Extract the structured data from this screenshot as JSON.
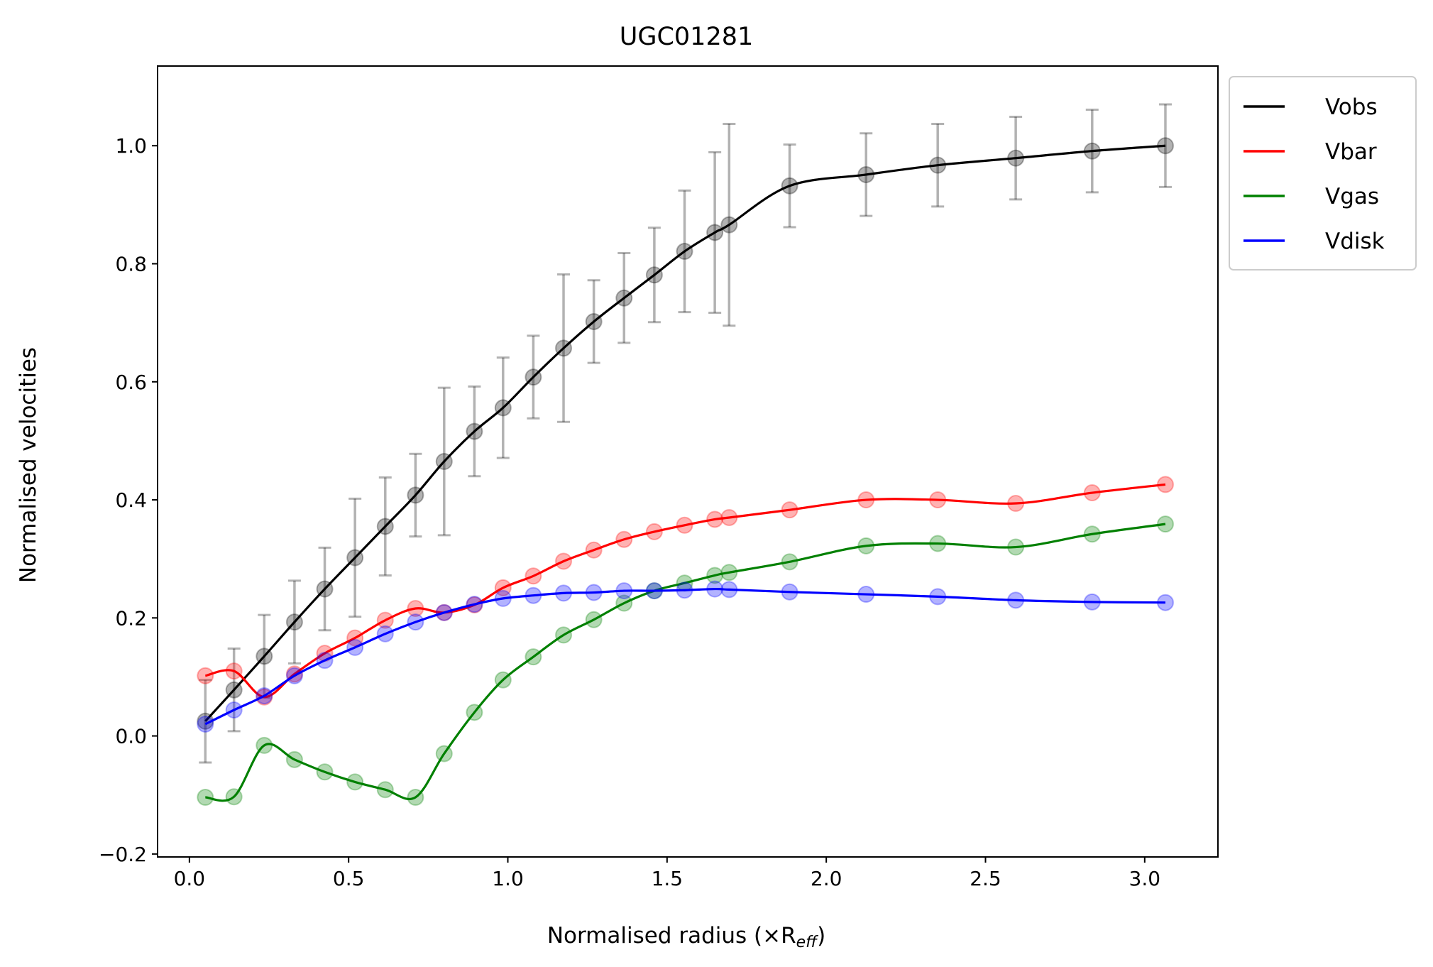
{
  "chart_data": {
    "type": "line",
    "title": "UGC01281",
    "xlabel": "Normalised radius (×R",
    "xlabel_sub": "eff",
    "xlabel_close": ")",
    "ylabel": "Normalised velocities",
    "xlim": [
      -0.1,
      3.23
    ],
    "ylim": [
      -0.205,
      1.135
    ],
    "xticks": [
      0.0,
      0.5,
      1.0,
      1.5,
      2.0,
      2.5,
      3.0
    ],
    "xtick_labels": [
      "0.0",
      "0.5",
      "1.0",
      "1.5",
      "2.0",
      "2.5",
      "3.0"
    ],
    "yticks": [
      -0.2,
      0.0,
      0.2,
      0.4,
      0.6,
      0.8,
      1.0
    ],
    "ytick_labels": [
      "−0.2",
      "0.0",
      "0.2",
      "0.4",
      "0.6",
      "0.8",
      "1.0"
    ],
    "legend_position": "outside-top-right",
    "x": [
      0.05,
      0.14,
      0.235,
      0.33,
      0.425,
      0.52,
      0.615,
      0.71,
      0.8,
      0.895,
      0.985,
      1.08,
      1.175,
      1.27,
      1.365,
      1.46,
      1.555,
      1.65,
      1.695,
      1.885,
      2.125,
      2.35,
      2.595,
      2.835,
      3.065
    ],
    "series": [
      {
        "name": "Vobs",
        "color": "#000000",
        "values": [
          0.025,
          0.078,
          0.135,
          0.193,
          0.249,
          0.302,
          0.355,
          0.408,
          0.465,
          0.516,
          0.556,
          0.608,
          0.657,
          0.702,
          0.742,
          0.781,
          0.821,
          0.853,
          0.866,
          0.932,
          0.951,
          0.967,
          0.979,
          0.991,
          1.0
        ],
        "errors": [
          0.07,
          0.07,
          0.07,
          0.07,
          0.07,
          0.1,
          0.083,
          0.07,
          0.125,
          0.076,
          0.085,
          0.07,
          0.125,
          0.07,
          0.076,
          0.08,
          0.103,
          0.136,
          0.171,
          0.07,
          0.07,
          0.07,
          0.07,
          0.07,
          0.07
        ]
      },
      {
        "name": "Vbar",
        "color": "#ff0000",
        "values": [
          0.102,
          0.11,
          0.066,
          0.105,
          0.14,
          0.166,
          0.196,
          0.216,
          0.209,
          0.222,
          0.251,
          0.271,
          0.296,
          0.315,
          0.333,
          0.346,
          0.357,
          0.367,
          0.37,
          0.383,
          0.4,
          0.4,
          0.394,
          0.412,
          0.426
        ]
      },
      {
        "name": "Vgas",
        "color": "#008000",
        "values": [
          -0.104,
          -0.103,
          -0.016,
          -0.04,
          -0.061,
          -0.078,
          -0.091,
          -0.104,
          -0.03,
          0.04,
          0.095,
          0.134,
          0.171,
          0.197,
          0.225,
          0.246,
          0.259,
          0.272,
          0.277,
          0.295,
          0.322,
          0.326,
          0.32,
          0.342,
          0.359
        ]
      },
      {
        "name": "Vdisk",
        "color": "#0000ff",
        "values": [
          0.02,
          0.044,
          0.068,
          0.102,
          0.128,
          0.15,
          0.173,
          0.193,
          0.209,
          0.223,
          0.233,
          0.238,
          0.242,
          0.243,
          0.246,
          0.246,
          0.247,
          0.249,
          0.248,
          0.244,
          0.24,
          0.236,
          0.23,
          0.227,
          0.226
        ]
      }
    ]
  }
}
